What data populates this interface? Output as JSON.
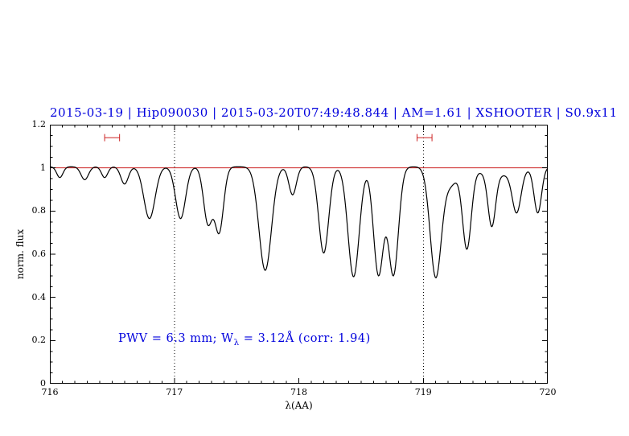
{
  "chart_data": {
    "type": "line",
    "title": "2015-03-19 | Hip090030 | 2015-03-20T07:49:48.844 | AM=1.61 | XSHOOTER | S0.9x11",
    "xlabel": "λ(AA)",
    "ylabel": "norm. flux",
    "xlim": [
      716,
      720
    ],
    "ylim": [
      0,
      1.2
    ],
    "xticks": [
      716,
      717,
      718,
      719,
      720
    ],
    "xtick_labels": [
      "716",
      "717",
      "718",
      "719",
      "720"
    ],
    "yticks": [
      0,
      0.2,
      0.4,
      0.6,
      0.8,
      1,
      1.2
    ],
    "ytick_labels": [
      "0",
      "0.2",
      "0.4",
      "0.6",
      "0.8",
      "1",
      "1.2"
    ],
    "x_minor_step": 0.1,
    "y_minor_step": 0.05,
    "grid": false,
    "continuum_level": 1.005,
    "continuum_line_y": 1.0,
    "vlines_dotted": [
      717,
      719
    ],
    "range_markers": [
      {
        "x1": 716.44,
        "x2": 716.56,
        "y": 1.14
      },
      {
        "x1": 718.95,
        "x2": 719.07,
        "y": 1.14
      }
    ],
    "model": "normalized flux = continuum_level minus sum of gaussian absorption lines",
    "sample_step": 0.006,
    "absorption_lines": [
      {
        "wavelength": 716.08,
        "depth": 0.05,
        "sigma": 0.025
      },
      {
        "wavelength": 716.28,
        "depth": 0.06,
        "sigma": 0.03
      },
      {
        "wavelength": 716.44,
        "depth": 0.05,
        "sigma": 0.025
      },
      {
        "wavelength": 716.6,
        "depth": 0.08,
        "sigma": 0.03
      },
      {
        "wavelength": 716.8,
        "depth": 0.24,
        "sigma": 0.045
      },
      {
        "wavelength": 717.05,
        "depth": 0.24,
        "sigma": 0.04
      },
      {
        "wavelength": 717.27,
        "depth": 0.26,
        "sigma": 0.035
      },
      {
        "wavelength": 717.36,
        "depth": 0.3,
        "sigma": 0.035
      },
      {
        "wavelength": 717.73,
        "depth": 0.48,
        "sigma": 0.05
      },
      {
        "wavelength": 717.95,
        "depth": 0.13,
        "sigma": 0.03
      },
      {
        "wavelength": 718.2,
        "depth": 0.4,
        "sigma": 0.04
      },
      {
        "wavelength": 718.44,
        "depth": 0.51,
        "sigma": 0.045
      },
      {
        "wavelength": 718.64,
        "depth": 0.5,
        "sigma": 0.04
      },
      {
        "wavelength": 718.76,
        "depth": 0.5,
        "sigma": 0.04
      },
      {
        "wavelength": 719.1,
        "depth": 0.51,
        "sigma": 0.045
      },
      {
        "wavelength": 719.22,
        "depth": 0.08,
        "sigma": 0.05
      },
      {
        "wavelength": 719.35,
        "depth": 0.37,
        "sigma": 0.035
      },
      {
        "wavelength": 719.55,
        "depth": 0.24,
        "sigma": 0.03
      },
      {
        "wavelength": 719.6,
        "depth": 0.04,
        "sigma": 0.15
      },
      {
        "wavelength": 719.75,
        "depth": 0.19,
        "sigma": 0.035
      },
      {
        "wavelength": 719.92,
        "depth": 0.21,
        "sigma": 0.03
      }
    ],
    "annotation": {
      "pre": "PWV = 6.3 mm; W",
      "sub": "λ",
      "post": " = 3.12Å (corr: 1.94)",
      "x": 716.55,
      "y": 0.2
    },
    "colors": {
      "spectrum": "#000000",
      "continuum": "#cc2222",
      "markers": "#cc2222",
      "title": "#0000dd",
      "annotation": "#0000dd",
      "dotted": "#000000",
      "frame": "#000000",
      "background": "#ffffff"
    }
  }
}
